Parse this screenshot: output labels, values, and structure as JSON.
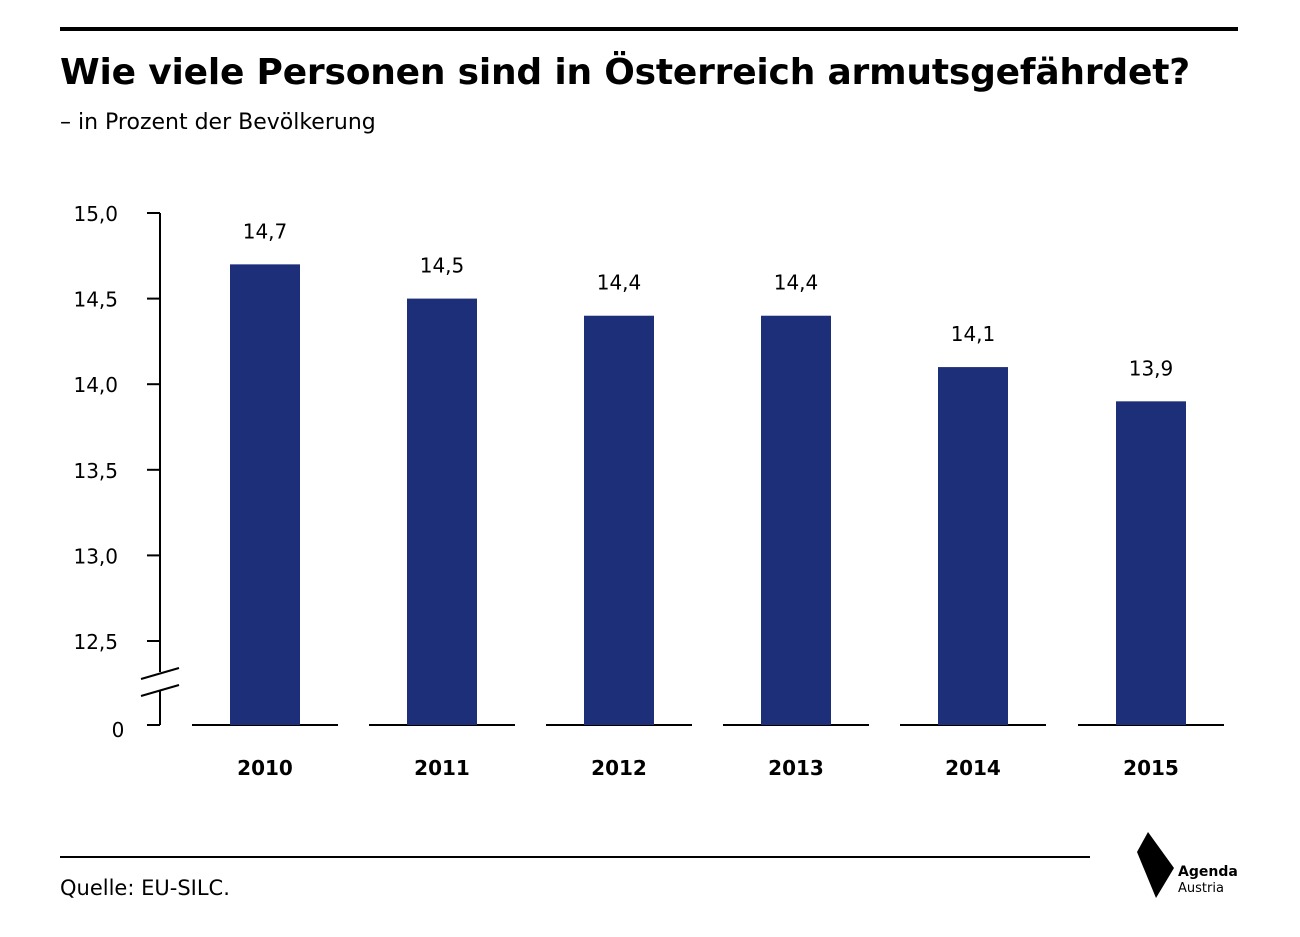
{
  "title": "Wie viele Personen sind in Österreich armutsgefährdet?",
  "subtitle": "– in Prozent der Bevölkerung",
  "source": "Quelle: EU-SILC.",
  "logo": {
    "line1": "Agenda",
    "line2": "Austria"
  },
  "colors": {
    "bar": "#1e2f7a",
    "axis": "#000000",
    "text": "#000000"
  },
  "chart_data": {
    "type": "bar",
    "title": "Wie viele Personen sind in Österreich armutsgefährdet?",
    "subtitle": "– in Prozent der Bevölkerung",
    "categories": [
      "2010",
      "2011",
      "2012",
      "2013",
      "2014",
      "2015"
    ],
    "values": [
      14.7,
      14.5,
      14.4,
      14.4,
      14.1,
      13.9
    ],
    "value_labels": [
      "14,7",
      "14,5",
      "14,4",
      "14,4",
      "14,1",
      "13,9"
    ],
    "yticks": [
      15.0,
      14.5,
      14.0,
      13.5,
      13.0,
      12.5
    ],
    "ytick_labels": [
      "15,0",
      "14,5",
      "14,0",
      "13,5",
      "13,0",
      "12,5"
    ],
    "baseline_label": "0",
    "ylim": [
      12.5,
      15.0
    ],
    "axis_break": true,
    "grid": false,
    "legend": "none"
  }
}
